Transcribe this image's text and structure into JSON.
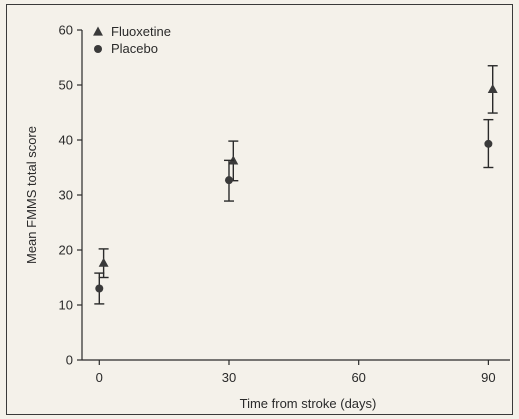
{
  "chart_data": {
    "type": "scatter",
    "xlabel": "Time from stroke (days)",
    "ylabel": "Mean FMMS total score",
    "x_ticks": [
      0,
      30,
      60,
      90
    ],
    "y_ticks": [
      0,
      10,
      20,
      30,
      40,
      50,
      60
    ],
    "xlim": [
      -4,
      95
    ],
    "ylim": [
      0,
      60
    ],
    "grid": false,
    "legend_position": "top-left",
    "series": [
      {
        "name": "Fluoxetine",
        "marker": "triangle",
        "color": "#3a3a3a",
        "points": [
          {
            "x": 1,
            "y": 17.6,
            "err_low": 15.0,
            "err_high": 20.2
          },
          {
            "x": 31,
            "y": 36.2,
            "err_low": 32.6,
            "err_high": 39.8
          },
          {
            "x": 91,
            "y": 49.2,
            "err_low": 44.9,
            "err_high": 53.5
          }
        ]
      },
      {
        "name": "Placebo",
        "marker": "circle",
        "color": "#3a3a3a",
        "points": [
          {
            "x": 0,
            "y": 13.0,
            "err_low": 10.2,
            "err_high": 15.8
          },
          {
            "x": 30,
            "y": 32.7,
            "err_low": 28.9,
            "err_high": 36.3
          },
          {
            "x": 90,
            "y": 39.3,
            "err_low": 35.0,
            "err_high": 43.7
          }
        ]
      }
    ]
  }
}
